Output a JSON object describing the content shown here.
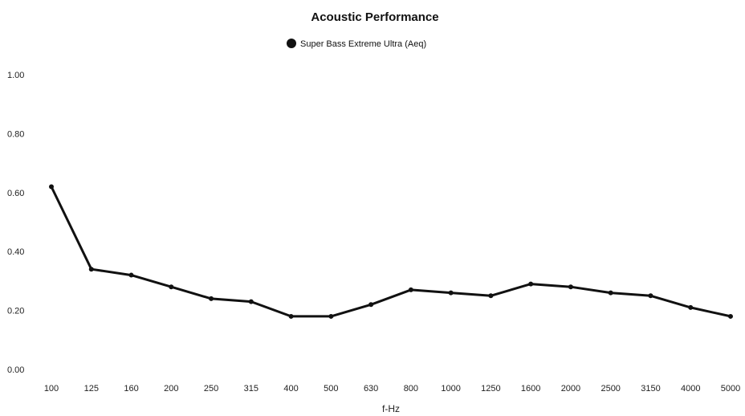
{
  "chart_data": {
    "type": "line",
    "title": "Acoustic Performance",
    "xlabel": "f-Hz",
    "ylabel": "",
    "categories": [
      "100",
      "125",
      "160",
      "200",
      "250",
      "315",
      "400",
      "500",
      "630",
      "800",
      "1000",
      "1250",
      "1600",
      "2000",
      "2500",
      "3150",
      "4000",
      "5000"
    ],
    "series": [
      {
        "name": "Super Bass Extreme Ultra (Aeq)",
        "color": "#111111",
        "values": [
          0.62,
          0.34,
          0.32,
          0.28,
          0.24,
          0.23,
          0.18,
          0.18,
          0.22,
          0.27,
          0.26,
          0.25,
          0.29,
          0.28,
          0.26,
          0.25,
          0.21,
          0.18
        ]
      }
    ],
    "ylim": [
      0,
      1
    ],
    "yticks": [
      "0.00",
      "0.20",
      "0.40",
      "0.60",
      "0.80",
      "1.00"
    ],
    "legend_position": "top-center",
    "grid": false
  }
}
